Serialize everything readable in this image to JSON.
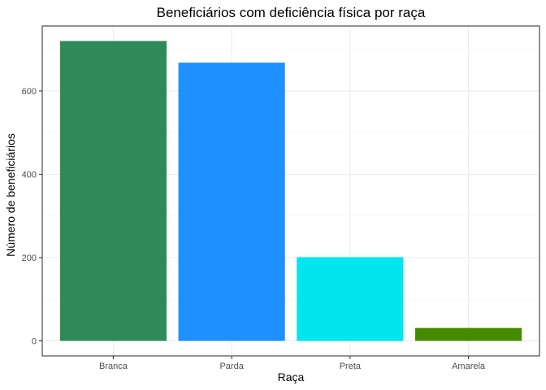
{
  "chart_data": {
    "type": "bar",
    "title": "Beneficiários com deficiência física por raça",
    "xlabel": "Raça",
    "ylabel": "Número de beneficiários",
    "categories": [
      "Branca",
      "Parda",
      "Preta",
      "Amarela"
    ],
    "values": [
      720,
      668,
      201,
      31
    ],
    "colors": [
      "#2E8B57",
      "#1E90FF",
      "#00E5EE",
      "#458B00"
    ],
    "ylim": [
      -36,
      756
    ],
    "yticks": [
      0,
      200,
      400,
      600
    ],
    "ytick_labels": [
      "0",
      "200",
      "400",
      "600"
    ],
    "grid": true,
    "legend": "none"
  }
}
